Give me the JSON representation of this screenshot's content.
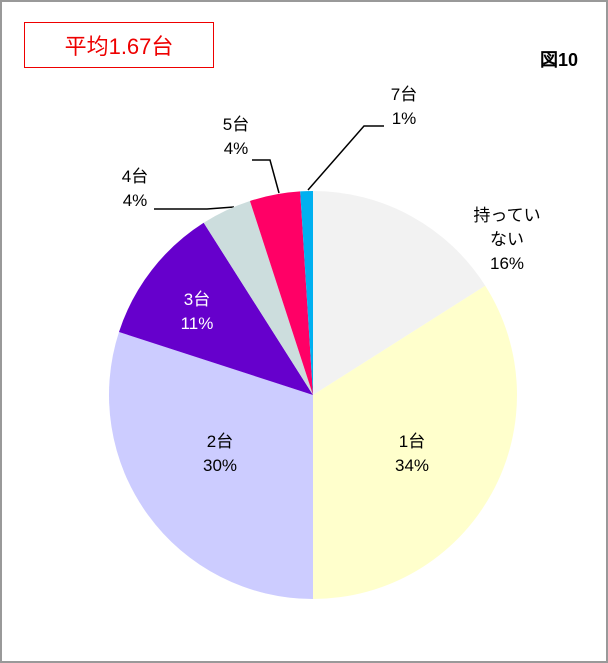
{
  "figure_label": "図10",
  "chart_data": {
    "type": "pie",
    "title": "平均1.67台",
    "categories": [
      "持っていない",
      "1台",
      "2台",
      "3台",
      "4台",
      "5台",
      "7台"
    ],
    "values": [
      16,
      34,
      30,
      11,
      4,
      4,
      1
    ],
    "value_labels": [
      "16%",
      "34%",
      "30%",
      "11%",
      "4%",
      "4%",
      "1%"
    ],
    "colors": [
      "#f2f2f2",
      "#ffffcc",
      "#ccccff",
      "#6600cc",
      "#ccdddd",
      "#ff0066",
      "#00b0f0"
    ]
  }
}
